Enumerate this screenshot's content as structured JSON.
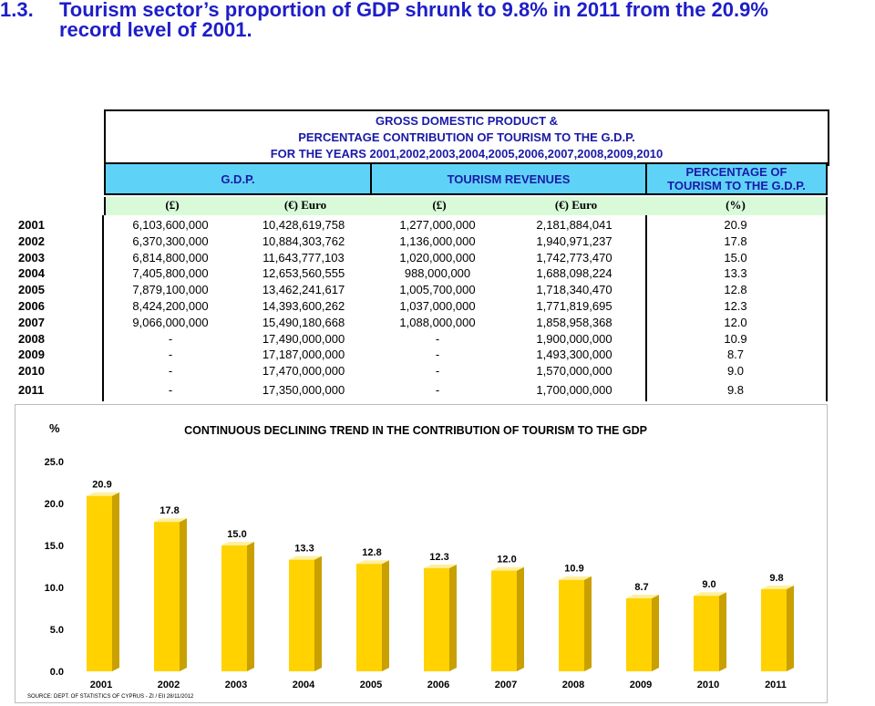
{
  "headline": {
    "number": "1.3.",
    "line1": "Tourism sector’s proportion of GDP shrunk to 9.8% in 2011 from  the 20.9%",
    "line2": "record level of 2001."
  },
  "table": {
    "title_lines": [
      "GROSS DOMESTIC PRODUCT &",
      "PERCENTAGE CONTRIBUTION OF TOURISM TO THE G.D.P.",
      "FOR THE YEARS 2001,2002,2003,2004,2005,2006,2007,2008,2009,2010"
    ],
    "headers": {
      "gdp": "G.D.P.",
      "tourism": "TOURISM REVENUES",
      "pct_line1": "PERCENTAGE OF",
      "pct_line2": "TOURISM TO THE G.D.P."
    },
    "units": [
      "(£)",
      "(€) Euro",
      "(£)",
      "(€) Euro",
      "(%)"
    ],
    "rows": [
      [
        "2001",
        "6,103,600,000",
        "10,428,619,758",
        "1,277,000,000",
        "2,181,884,041",
        "20.9"
      ],
      [
        "2002",
        "6,370,300,000",
        "10,884,303,762",
        "1,136,000,000",
        "1,940,971,237",
        "17.8"
      ],
      [
        "2003",
        "6,814,800,000",
        "11,643,777,103",
        "1,020,000,000",
        "1,742,773,470",
        "15.0"
      ],
      [
        "2004",
        "7,405,800,000",
        "12,653,560,555",
        "988,000,000",
        "1,688,098,224",
        "13.3"
      ],
      [
        "2005",
        "7,879,100,000",
        "13,462,241,617",
        "1,005,700,000",
        "1,718,340,470",
        "12.8"
      ],
      [
        "2006",
        "8,424,200,000",
        "14,393,600,262",
        "1,037,000,000",
        "1,771,819,695",
        "12.3"
      ],
      [
        "2007",
        "9,066,000,000",
        "15,490,180,668",
        "1,088,000,000",
        "1,858,958,368",
        "12.0"
      ],
      [
        "2008",
        "-",
        "17,490,000,000",
        "-",
        "1,900,000,000",
        "10.9"
      ],
      [
        "2009",
        "-",
        "17,187,000,000",
        "-",
        "1,493,300,000",
        "8.7"
      ],
      [
        "2010",
        "-",
        "17,470,000,000",
        "-",
        "1,570,000,000",
        "9.0"
      ],
      [
        "2011",
        "-",
        "17,350,000,000",
        "-",
        "1,700,000,000",
        "9.8"
      ]
    ]
  },
  "chart_data": {
    "type": "bar",
    "title": "CONTINUOUS DECLINING TREND IN THE CONTRIBUTION OF TOURISM TO THE GDP",
    "ylabel": "%",
    "categories": [
      "2001",
      "2002",
      "2003",
      "2004",
      "2005",
      "2006",
      "2007",
      "2008",
      "2009",
      "2010",
      "2011"
    ],
    "values": [
      20.9,
      17.8,
      15.0,
      13.3,
      12.8,
      12.3,
      12.0,
      10.9,
      8.7,
      9.0,
      9.8
    ],
    "value_labels": [
      "20.9",
      "17.8",
      "15.0",
      "13.3",
      "12.8",
      "12.3",
      "12.0",
      "10.9",
      "8.7",
      "9.0",
      "9.8"
    ],
    "ylim": [
      0,
      25
    ],
    "yticks": [
      "0.0",
      "5.0",
      "10.0",
      "15.0",
      "20.0",
      "25.0"
    ],
    "ytick_values": [
      0,
      5,
      10,
      15,
      20,
      25
    ],
    "grid": false,
    "source": "SOURCE: DEPT. OF STATISTICS OF CYPRUS - ZI / EII 28/11/2012",
    "colors": {
      "bar_front": "#ffd200",
      "bar_side": "#c9a000",
      "bar_top": "#fff0a0",
      "title": "#000000"
    }
  }
}
